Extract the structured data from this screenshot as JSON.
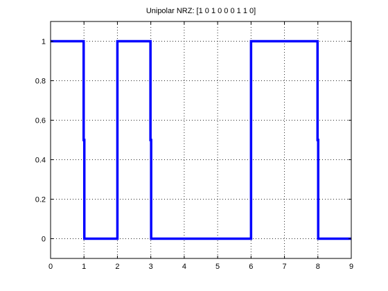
{
  "chart_data": {
    "type": "line",
    "title": "Unipolar NRZ: [1  0  1  0  0  0  1  1  0]",
    "xlabel": "",
    "ylabel": "",
    "xlim": [
      0,
      9
    ],
    "ylim": [
      -0.1,
      1.1
    ],
    "x_ticks": [
      0,
      1,
      2,
      3,
      4,
      5,
      6,
      7,
      8,
      9
    ],
    "x_tick_labels": [
      "0",
      "1",
      "2",
      "3",
      "4",
      "5",
      "6",
      "7",
      "8",
      "9"
    ],
    "y_ticks": [
      0,
      0.2,
      0.4,
      0.6,
      0.8,
      1
    ],
    "y_tick_labels": [
      "0",
      "0.2",
      "0.4",
      "0.6",
      "0.8",
      "1"
    ],
    "grid": true,
    "grid_style": "dotted",
    "legend": false,
    "bits": [
      1,
      0,
      1,
      0,
      0,
      0,
      1,
      1,
      0
    ],
    "series": [
      {
        "color": "#0000ff",
        "x": [
          0,
          0.99,
          0.99,
          1.01,
          1.01,
          2,
          2,
          2.99,
          2.99,
          3.01,
          3.01,
          6,
          6,
          7.99,
          7.99,
          8.01,
          8.01,
          9
        ],
        "y": [
          1,
          1,
          0.5,
          0.5,
          0,
          0,
          1,
          1,
          0.5,
          0.5,
          0,
          0,
          1,
          1,
          0.5,
          0.5,
          0,
          0
        ]
      }
    ]
  }
}
